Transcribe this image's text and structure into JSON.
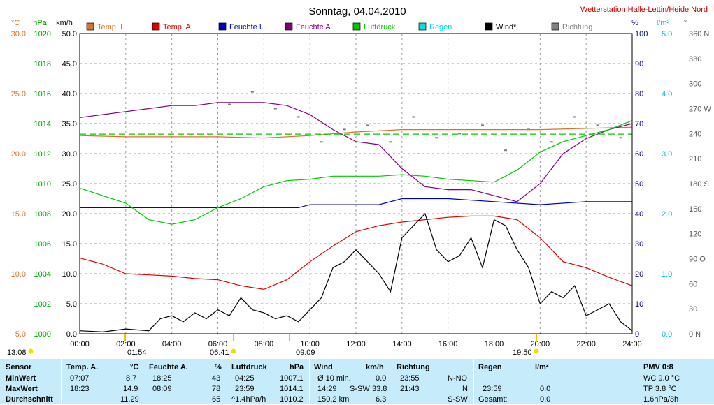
{
  "chart_data": {
    "type": "line",
    "title": "Sonntag, 04.04.2010",
    "station": "Wetterstation Halle-Lettin/Heide Nord",
    "axes": {
      "temp": {
        "unit": "°C",
        "min": 5,
        "max": 30,
        "ticks": [
          "30.0",
          "25.0",
          "20.0",
          "15.0",
          "10.0",
          "5.0"
        ],
        "color": "#e0702a"
      },
      "pressure": {
        "unit": "hPa",
        "min": 1000,
        "max": 1020,
        "ticks": [
          "1020",
          "1018",
          "1016",
          "1014",
          "1012",
          "1010",
          "1008",
          "1006",
          "1004",
          "1002",
          "1000"
        ],
        "color": "#00a000"
      },
      "wind": {
        "unit": "km/h",
        "min": 0,
        "max": 50,
        "ticks": [
          "50.0",
          "45.0",
          "40.0",
          "35.0",
          "30.0",
          "25.0",
          "20.0",
          "15.0",
          "10.0",
          "5.0",
          "0.0"
        ],
        "color": "#000000"
      },
      "humidity": {
        "unit": "%",
        "min": 0,
        "max": 100,
        "ticks": [
          "100",
          "90",
          "80",
          "70",
          "60",
          "50",
          "40",
          "30",
          "20",
          "10",
          "0"
        ],
        "color": "#000080"
      },
      "rain": {
        "unit": "l/m²",
        "min": 0,
        "max": 5,
        "ticks": [
          "5.0",
          "4.0",
          "3.0",
          "2.0",
          "1.0",
          "0.0"
        ],
        "color": "#00b8d0"
      },
      "direction": {
        "unit": "°",
        "min": 0,
        "max": 360,
        "ticks": [
          "360 N",
          "330",
          "300",
          "270 W",
          "240",
          "210",
          "180 S",
          "150",
          "120",
          "90 O",
          "60",
          "30",
          "0 N"
        ],
        "color": "#555555"
      },
      "x_ticks": [
        "00:00",
        "02:00",
        "04:00",
        "06:00",
        "08:00",
        "10:00",
        "12:00",
        "14:00",
        "16:00",
        "18:00",
        "20:00",
        "22:00",
        "24:00"
      ]
    },
    "sun_labels": {
      "rise_left": "13:08",
      "twilight": "01:54",
      "sunrise": "06:41",
      "moon": "09:09",
      "sunset": "19:50"
    },
    "legend": [
      {
        "name": "Temp. I.",
        "color": "#e0702a"
      },
      {
        "name": "Temp. A.",
        "color": "#e00000"
      },
      {
        "name": "Feuchte I.",
        "color": "#0000c0"
      },
      {
        "name": "Feuchte A.",
        "color": "#800080"
      },
      {
        "name": "Luftdruck",
        "color": "#00c800"
      },
      {
        "name": "Regen",
        "color": "#00e0e0"
      },
      {
        "name": "Wind*",
        "color": "#000000"
      },
      {
        "name": "Richtung",
        "color": "#808080"
      }
    ],
    "series": [
      {
        "name": "Temp. I.",
        "axis": "temp",
        "color": "#e0702a",
        "x": [
          0,
          2,
          4,
          6,
          8,
          10,
          12,
          14,
          16,
          18,
          20,
          22,
          24
        ],
        "values": [
          21.5,
          21.4,
          21.4,
          21.4,
          21.3,
          21.5,
          21.8,
          22.0,
          22.0,
          22.0,
          22.0,
          22.1,
          22.2
        ]
      },
      {
        "name": "Temp. A.",
        "axis": "temp",
        "color": "#e00000",
        "x": [
          0,
          1,
          2,
          3,
          4,
          5,
          6,
          7,
          8,
          9,
          10,
          11,
          12,
          13,
          14,
          15,
          16,
          17,
          18,
          19,
          20,
          21,
          22,
          23,
          24
        ],
        "values": [
          11.3,
          10.8,
          10.0,
          9.9,
          9.8,
          9.6,
          9.5,
          9.0,
          8.7,
          9.5,
          11.0,
          12.3,
          13.5,
          14.0,
          14.3,
          14.5,
          14.7,
          14.8,
          14.8,
          14.5,
          13.0,
          11.0,
          10.5,
          9.7,
          9.0
        ]
      },
      {
        "name": "Feuchte I.",
        "axis": "humidity",
        "color": "#0000c0",
        "x": [
          0,
          2,
          4,
          6,
          8,
          9.5,
          10,
          12,
          13,
          14,
          16,
          18,
          20,
          22,
          24
        ],
        "values": [
          42,
          42,
          42,
          42,
          42,
          42,
          43,
          43,
          43,
          45,
          45,
          44,
          43,
          44,
          44
        ]
      },
      {
        "name": "Feuchte A.",
        "axis": "humidity",
        "color": "#800080",
        "x": [
          0,
          1,
          2,
          3,
          4,
          5,
          6,
          7,
          8,
          9,
          10,
          11,
          12,
          13,
          14,
          15,
          16,
          17,
          18,
          19,
          20,
          21,
          22,
          23,
          24
        ],
        "values": [
          72,
          73,
          74,
          75,
          76,
          76,
          77,
          77,
          77,
          76,
          73,
          68,
          64,
          63,
          55,
          49,
          48,
          48,
          46,
          44,
          50,
          60,
          65,
          68,
          70
        ]
      },
      {
        "name": "Luftdruck",
        "axis": "pressure",
        "color": "#00c800",
        "x": [
          0,
          1,
          2,
          3,
          4,
          5,
          6,
          7,
          8,
          9,
          10,
          11,
          12,
          13,
          14,
          15,
          16,
          17,
          18,
          19,
          20,
          21,
          22,
          23,
          24
        ],
        "values": [
          1009.7,
          1009.2,
          1008.7,
          1007.6,
          1007.3,
          1007.6,
          1008.4,
          1009.0,
          1009.8,
          1010.2,
          1010.3,
          1010.5,
          1010.5,
          1010.5,
          1010.6,
          1010.5,
          1010.3,
          1010.2,
          1010.1,
          1010.9,
          1012.1,
          1012.8,
          1013.2,
          1013.6,
          1014.2
        ]
      },
      {
        "name": "Luftdruck-Mittel",
        "axis": "pressure",
        "color": "#00c800",
        "dashed": true,
        "x": [
          0,
          24
        ],
        "values": [
          1013.3,
          1013.3
        ]
      },
      {
        "name": "Wind*",
        "axis": "wind",
        "color": "#000000",
        "x": [
          0,
          1,
          2,
          3,
          3.5,
          4,
          4.5,
          5,
          5.5,
          6,
          6.5,
          7,
          7.5,
          8,
          8.5,
          9,
          9.5,
          10,
          10.5,
          11,
          11.5,
          12,
          12.5,
          13,
          13.5,
          14,
          14.5,
          15,
          15.5,
          16,
          16.5,
          17,
          17.5,
          18,
          18.5,
          19,
          19.5,
          20,
          20.5,
          21,
          21.5,
          22,
          22.5,
          23,
          23.5,
          24
        ],
        "values": [
          0.5,
          0.3,
          0.8,
          0.5,
          2.5,
          3.0,
          2.0,
          3.5,
          2.5,
          4.0,
          3.0,
          6.0,
          4.0,
          3.5,
          2.5,
          3.0,
          2.0,
          4.0,
          6.0,
          11.0,
          12.0,
          14.0,
          12.0,
          10.0,
          7.0,
          16.0,
          18.0,
          20.0,
          14.0,
          12.0,
          13.0,
          16.0,
          11.0,
          19.0,
          18.0,
          14.0,
          11.0,
          5.0,
          7.0,
          6.0,
          8.0,
          3.0,
          4.0,
          5.0,
          2.0,
          0.5
        ]
      }
    ],
    "direction_dots": [
      {
        "x": 6.5,
        "y": 275
      },
      {
        "x": 7.5,
        "y": 290
      },
      {
        "x": 8.5,
        "y": 270
      },
      {
        "x": 9.5,
        "y": 260
      },
      {
        "x": 10.5,
        "y": 230
      },
      {
        "x": 11.5,
        "y": 245
      },
      {
        "x": 12.5,
        "y": 250
      },
      {
        "x": 13.5,
        "y": 230
      },
      {
        "x": 14.5,
        "y": 260
      },
      {
        "x": 15.5,
        "y": 235
      },
      {
        "x": 16.5,
        "y": 240
      },
      {
        "x": 17.5,
        "y": 250
      },
      {
        "x": 18.5,
        "y": 220
      },
      {
        "x": 19.5,
        "y": 245
      },
      {
        "x": 20.5,
        "y": 230
      },
      {
        "x": 21.5,
        "y": 260
      },
      {
        "x": 22.5,
        "y": 250
      },
      {
        "x": 23.5,
        "y": 235
      }
    ]
  },
  "stats": {
    "headers": {
      "sensor": "Sensor",
      "temp": {
        "label": "Temp. A.",
        "unit": "°C"
      },
      "hum": {
        "label": "Feuchte A.",
        "unit": "%"
      },
      "press": {
        "label": "Luftdruck",
        "unit": "hPa"
      },
      "wind": {
        "label": "Wind",
        "unit": "km/h"
      },
      "dir": {
        "label": "Richtung"
      },
      "rain": {
        "label": "Regen",
        "unit": "l/m²"
      },
      "pmv": {
        "label": "PMV 0:8"
      }
    },
    "rows": [
      {
        "label": "MinWert",
        "temp": [
          "07:07",
          "8.7"
        ],
        "hum": [
          "18:25",
          "43"
        ],
        "press": [
          "04:25",
          "1007.1"
        ],
        "wind": [
          "Ø 10 min.",
          "",
          "0.0"
        ],
        "dir": [
          "23:55",
          "N-NO"
        ],
        "rain": [
          "",
          "",
          ""
        ],
        "pmv": "WC 9.0 °C"
      },
      {
        "label": "MaxWert",
        "temp": [
          "18:23",
          "14.9"
        ],
        "hum": [
          "08:09",
          "78"
        ],
        "press": [
          "23:59",
          "1014.1"
        ],
        "wind": [
          "14:29",
          "S-SW",
          "33.8"
        ],
        "dir": [
          "21:43",
          "N"
        ],
        "rain": [
          "23:59",
          "",
          "0.0"
        ],
        "pmv": "TP 3.8 °C"
      },
      {
        "label": "Durchschnitt",
        "temp": [
          "",
          "11.29"
        ],
        "hum": [
          "",
          "65"
        ],
        "press": [
          "^1.4hPa/h",
          "1010.2"
        ],
        "wind": [
          "150.2 km",
          "",
          "6.3"
        ],
        "dir": [
          "",
          "S-SW"
        ],
        "rain": [
          "Gesamt:",
          "",
          "0.0"
        ],
        "pmv": "1.6hPa/3h"
      }
    ]
  }
}
